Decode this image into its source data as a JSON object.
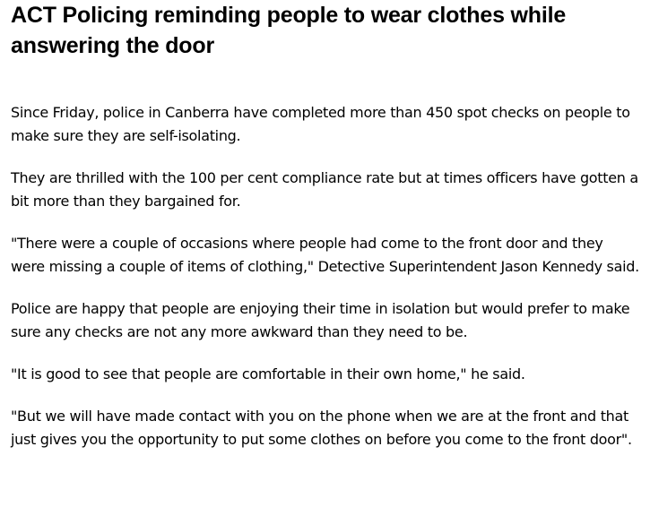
{
  "article": {
    "title": "ACT Policing reminding people to wear clothes while answering the door",
    "paragraphs": [
      "Since Friday, police in Canberra have completed more than 450 spot checks on people to make sure they are self-isolating.",
      "They are thrilled with the 100 per cent compliance rate but at times officers have gotten a bit more than they bargained for.",
      "\"There were a couple of occasions where people had come to the front door and they were missing a couple of items of clothing,\" Detective Superintendent Jason Kennedy said.",
      "Police are happy that people are enjoying their time in isolation but would prefer to make sure any checks are not any more awkward than they need to be.",
      "\"It is good to see that people are comfortable in their own home,\" he said.",
      "\"But we will have made contact with you on the phone when we are at the front and that just gives you the opportunity to put some clothes on before you come to the front door\"."
    ]
  }
}
